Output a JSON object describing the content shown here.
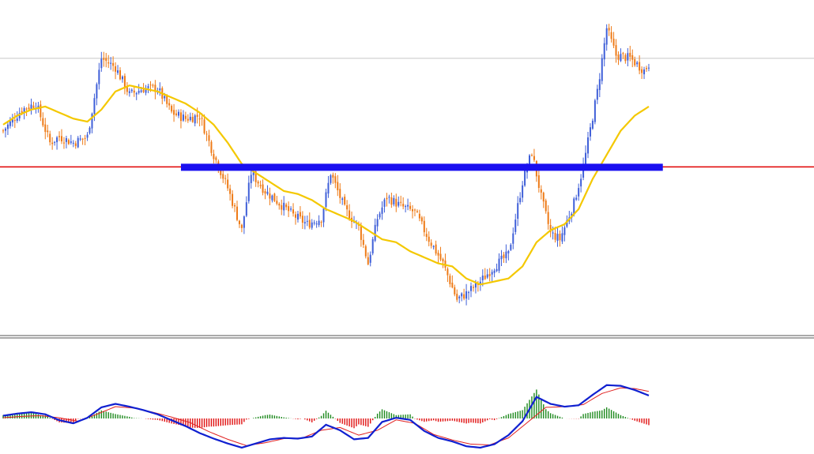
{
  "chart_data": {
    "type": "candlestick",
    "title": "",
    "xlabel": "",
    "ylabel": "",
    "grid": false,
    "colors": {
      "background": "#ffffff",
      "bull_candle": "#3f5fd8",
      "bear_candle": "#ee7a16",
      "moving_average": "#f4c800",
      "horizontal_level": "#e00000",
      "resistance_zone": "#1a10f0",
      "reference_level": "#c8c8c8",
      "panel_separator": "#555555",
      "macd_line": "#1020d0",
      "signal_line": "#e02020",
      "hist_positive": "#1e8a1e",
      "hist_negative": "#e01010"
    },
    "price_panel": {
      "ylim": [
        0,
        100
      ],
      "reference_level": 88,
      "horizontal_level": 52,
      "resistance_zone": {
        "from_bar": 76,
        "to_bar": 282,
        "level": 52
      },
      "ma_key_points": [
        [
          0,
          66
        ],
        [
          6,
          69
        ],
        [
          12,
          71
        ],
        [
          18,
          72
        ],
        [
          24,
          70
        ],
        [
          30,
          68
        ],
        [
          36,
          67
        ],
        [
          42,
          71
        ],
        [
          48,
          77
        ],
        [
          54,
          79
        ],
        [
          60,
          78
        ],
        [
          66,
          77
        ],
        [
          72,
          75
        ],
        [
          78,
          73
        ],
        [
          84,
          70
        ],
        [
          90,
          66
        ],
        [
          96,
          60
        ],
        [
          102,
          53
        ],
        [
          108,
          50
        ],
        [
          114,
          47
        ],
        [
          120,
          44
        ],
        [
          126,
          43
        ],
        [
          132,
          41
        ],
        [
          138,
          38
        ],
        [
          144,
          36
        ],
        [
          150,
          34
        ],
        [
          156,
          31
        ],
        [
          162,
          28
        ],
        [
          168,
          27
        ],
        [
          174,
          24
        ],
        [
          180,
          22
        ],
        [
          186,
          20
        ],
        [
          192,
          19
        ],
        [
          198,
          15
        ],
        [
          204,
          13
        ],
        [
          210,
          14
        ],
        [
          216,
          15
        ],
        [
          222,
          19
        ],
        [
          228,
          27
        ],
        [
          234,
          31
        ],
        [
          240,
          33
        ],
        [
          246,
          38
        ],
        [
          252,
          48
        ],
        [
          258,
          56
        ],
        [
          264,
          64
        ],
        [
          270,
          69
        ],
        [
          276,
          72
        ]
      ],
      "candle_segments": [
        [
          0,
          64
        ],
        [
          8,
          71
        ],
        [
          14,
          73
        ],
        [
          20,
          60
        ],
        [
          24,
          62
        ],
        [
          30,
          60
        ],
        [
          36,
          62
        ],
        [
          42,
          88
        ],
        [
          48,
          85
        ],
        [
          54,
          76
        ],
        [
          60,
          78
        ],
        [
          66,
          78
        ],
        [
          72,
          70
        ],
        [
          78,
          68
        ],
        [
          84,
          69
        ],
        [
          90,
          56
        ],
        [
          96,
          45
        ],
        [
          102,
          31
        ],
        [
          106,
          50
        ],
        [
          112,
          44
        ],
        [
          118,
          40
        ],
        [
          124,
          36
        ],
        [
          130,
          33
        ],
        [
          136,
          35
        ],
        [
          140,
          50
        ],
        [
          146,
          38
        ],
        [
          152,
          32
        ],
        [
          156,
          20
        ],
        [
          160,
          35
        ],
        [
          164,
          42
        ],
        [
          170,
          39
        ],
        [
          176,
          37
        ],
        [
          182,
          28
        ],
        [
          188,
          20
        ],
        [
          194,
          8
        ],
        [
          198,
          10
        ],
        [
          204,
          14
        ],
        [
          210,
          19
        ],
        [
          216,
          23
        ],
        [
          222,
          47
        ],
        [
          226,
          57
        ],
        [
          230,
          42
        ],
        [
          234,
          30
        ],
        [
          238,
          28
        ],
        [
          244,
          40
        ],
        [
          248,
          52
        ],
        [
          254,
          77
        ],
        [
          258,
          98
        ],
        [
          262,
          89
        ],
        [
          268,
          88
        ],
        [
          274,
          84
        ],
        [
          276,
          86
        ]
      ]
    },
    "indicator_panel": {
      "ylim": [
        -1,
        1
      ],
      "macd_key_points": [
        [
          0,
          0.08
        ],
        [
          6,
          0.14
        ],
        [
          12,
          0.18
        ],
        [
          18,
          0.12
        ],
        [
          24,
          -0.05
        ],
        [
          30,
          -0.14
        ],
        [
          36,
          0.02
        ],
        [
          42,
          0.32
        ],
        [
          48,
          0.42
        ],
        [
          54,
          0.34
        ],
        [
          60,
          0.24
        ],
        [
          66,
          0.12
        ],
        [
          72,
          -0.05
        ],
        [
          78,
          -0.22
        ],
        [
          84,
          -0.42
        ],
        [
          90,
          -0.58
        ],
        [
          96,
          -0.72
        ],
        [
          102,
          -0.84
        ],
        [
          108,
          -0.72
        ],
        [
          114,
          -0.6
        ],
        [
          120,
          -0.56
        ],
        [
          126,
          -0.58
        ],
        [
          132,
          -0.52
        ],
        [
          138,
          -0.18
        ],
        [
          144,
          -0.34
        ],
        [
          150,
          -0.6
        ],
        [
          156,
          -0.56
        ],
        [
          162,
          -0.1
        ],
        [
          168,
          0.02
        ],
        [
          174,
          -0.04
        ],
        [
          180,
          -0.36
        ],
        [
          186,
          -0.56
        ],
        [
          192,
          -0.66
        ],
        [
          198,
          -0.8
        ],
        [
          204,
          -0.84
        ],
        [
          210,
          -0.74
        ],
        [
          216,
          -0.48
        ],
        [
          222,
          -0.08
        ],
        [
          228,
          0.62
        ],
        [
          234,
          0.42
        ],
        [
          240,
          0.34
        ],
        [
          246,
          0.38
        ],
        [
          252,
          0.68
        ],
        [
          258,
          0.96
        ],
        [
          264,
          0.94
        ],
        [
          270,
          0.82
        ],
        [
          276,
          0.66
        ]
      ],
      "signal_key_points": [
        [
          0,
          0.02
        ],
        [
          8,
          0.06
        ],
        [
          16,
          0.08
        ],
        [
          24,
          0.02
        ],
        [
          32,
          -0.08
        ],
        [
          40,
          0.12
        ],
        [
          48,
          0.34
        ],
        [
          56,
          0.3
        ],
        [
          64,
          0.18
        ],
        [
          72,
          0.04
        ],
        [
          80,
          -0.12
        ],
        [
          88,
          -0.38
        ],
        [
          96,
          -0.6
        ],
        [
          104,
          -0.78
        ],
        [
          112,
          -0.7
        ],
        [
          120,
          -0.58
        ],
        [
          128,
          -0.56
        ],
        [
          136,
          -0.34
        ],
        [
          144,
          -0.26
        ],
        [
          152,
          -0.48
        ],
        [
          160,
          -0.34
        ],
        [
          168,
          -0.04
        ],
        [
          176,
          -0.14
        ],
        [
          184,
          -0.46
        ],
        [
          192,
          -0.62
        ],
        [
          200,
          -0.74
        ],
        [
          208,
          -0.76
        ],
        [
          216,
          -0.56
        ],
        [
          224,
          -0.12
        ],
        [
          232,
          0.32
        ],
        [
          240,
          0.34
        ],
        [
          248,
          0.4
        ],
        [
          256,
          0.72
        ],
        [
          264,
          0.88
        ],
        [
          270,
          0.86
        ],
        [
          276,
          0.78
        ]
      ]
    }
  }
}
